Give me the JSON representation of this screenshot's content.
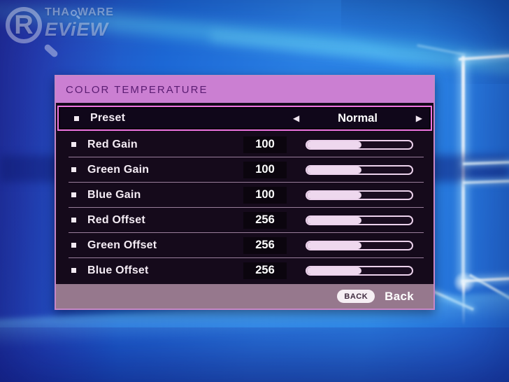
{
  "watermark": {
    "big_letter": "R",
    "line1_pre": "THA",
    "line1_post": "WARE",
    "line2": "EViEW"
  },
  "icons": {
    "arrow_left": "◀",
    "arrow_right": "▶"
  },
  "osd": {
    "title": "COLOR TEMPERATURE",
    "preset_row": {
      "label": "Preset",
      "value": "Normal"
    },
    "rows": [
      {
        "label": "Red Gain",
        "value": "100",
        "fill_percent": 52
      },
      {
        "label": "Green Gain",
        "value": "100",
        "fill_percent": 52
      },
      {
        "label": "Blue Gain",
        "value": "100",
        "fill_percent": 52
      },
      {
        "label": "Red Offset",
        "value": "256",
        "fill_percent": 52
      },
      {
        "label": "Green Offset",
        "value": "256",
        "fill_percent": 52
      },
      {
        "label": "Blue Offset",
        "value": "256",
        "fill_percent": 52
      }
    ],
    "footer": {
      "button_label": "BACK",
      "action_label": "Back"
    }
  },
  "colors": {
    "header_bg": "#cb7fd2",
    "header_text": "#5a1c72",
    "body_bg": "#150a1b",
    "accent_border": "#ee74e0",
    "menu_border": "#c687c6",
    "row_text": "#f4ecf4",
    "slider_fill": "#eed8ee",
    "footer_bg": "#96788d",
    "desktop_blue": "#1e6ad4"
  }
}
